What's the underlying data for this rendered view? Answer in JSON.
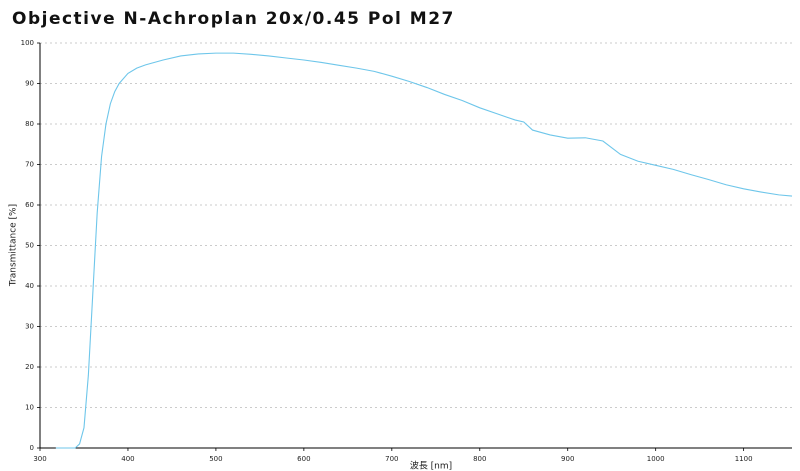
{
  "chart_data": {
    "type": "line",
    "title": "Objective N-Achroplan 20x/0.45 Pol M27",
    "x_label": "波長 [nm]",
    "y_label": "Transmittance [%]",
    "x": [
      318,
      340,
      345,
      350,
      355,
      360,
      365,
      370,
      375,
      380,
      385,
      390,
      400,
      410,
      420,
      440,
      460,
      480,
      500,
      520,
      540,
      560,
      580,
      600,
      620,
      640,
      660,
      680,
      700,
      720,
      740,
      760,
      780,
      800,
      820,
      840,
      850,
      860,
      880,
      900,
      920,
      940,
      960,
      980,
      1000,
      1020,
      1040,
      1060,
      1080,
      1100,
      1120,
      1140,
      1155
    ],
    "series": [
      {
        "name": "Transmittance",
        "color": "#6ec6ea",
        "values": [
          0,
          0,
          1,
          5,
          18,
          38,
          58,
          72,
          80,
          85,
          88,
          90,
          92.5,
          93.8,
          94.6,
          95.8,
          96.8,
          97.3,
          97.5,
          97.5,
          97.2,
          96.8,
          96.3,
          95.8,
          95.2,
          94.5,
          93.8,
          93,
          91.8,
          90.5,
          89,
          87.3,
          85.8,
          84,
          82.5,
          81,
          80.5,
          78.5,
          77.3,
          76.5,
          76.6,
          75.8,
          72.5,
          70.8,
          69.8,
          68.8,
          67.5,
          66.3,
          65,
          64,
          63.2,
          62.5,
          62.2
        ]
      }
    ],
    "xlim": [
      300,
      1155
    ],
    "ylim": [
      0,
      100
    ],
    "xticks": [
      300,
      400,
      500,
      600,
      700,
      800,
      900,
      1000,
      1100
    ],
    "yticks": [
      0,
      10,
      20,
      30,
      40,
      50,
      60,
      70,
      80,
      90,
      100
    ],
    "grid": true
  }
}
